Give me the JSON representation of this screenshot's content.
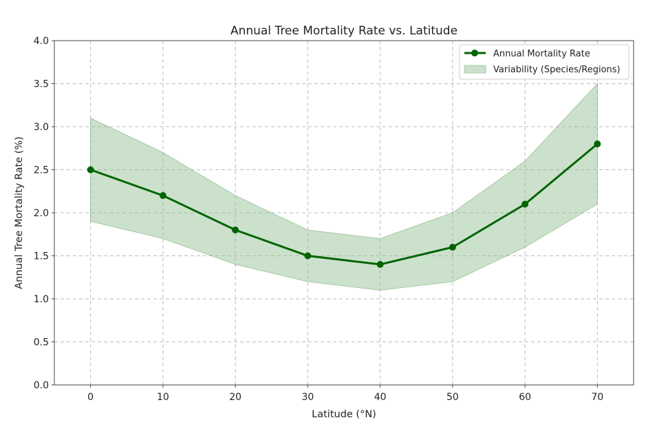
{
  "chart_data": {
    "type": "line",
    "title": "Annual Tree Mortality Rate vs. Latitude",
    "xlabel": "Latitude (°N)",
    "ylabel": "Annual Tree Mortality Rate (%)",
    "x": [
      0,
      10,
      20,
      30,
      40,
      50,
      60,
      70
    ],
    "xlim": [
      -5,
      75
    ],
    "ylim": [
      0,
      4.0
    ],
    "xticks": [
      "0",
      "10",
      "20",
      "30",
      "40",
      "50",
      "60",
      "70"
    ],
    "yticks": [
      "0.0",
      "0.5",
      "1.0",
      "1.5",
      "2.0",
      "2.5",
      "3.0",
      "3.5",
      "4.0"
    ],
    "grid": true,
    "legend_position": "top-right",
    "series": [
      {
        "name": "Annual Mortality Rate",
        "values": [
          2.5,
          2.2,
          1.8,
          1.5,
          1.4,
          1.6,
          2.1,
          2.8
        ],
        "color": "#006400"
      }
    ],
    "band": {
      "name": "Variability (Species/Regions)",
      "lower": [
        1.9,
        1.7,
        1.4,
        1.2,
        1.1,
        1.2,
        1.6,
        2.1
      ],
      "upper": [
        3.1,
        2.7,
        2.2,
        1.8,
        1.7,
        2.0,
        2.6,
        3.5
      ],
      "color": "#8fbc8f"
    }
  }
}
